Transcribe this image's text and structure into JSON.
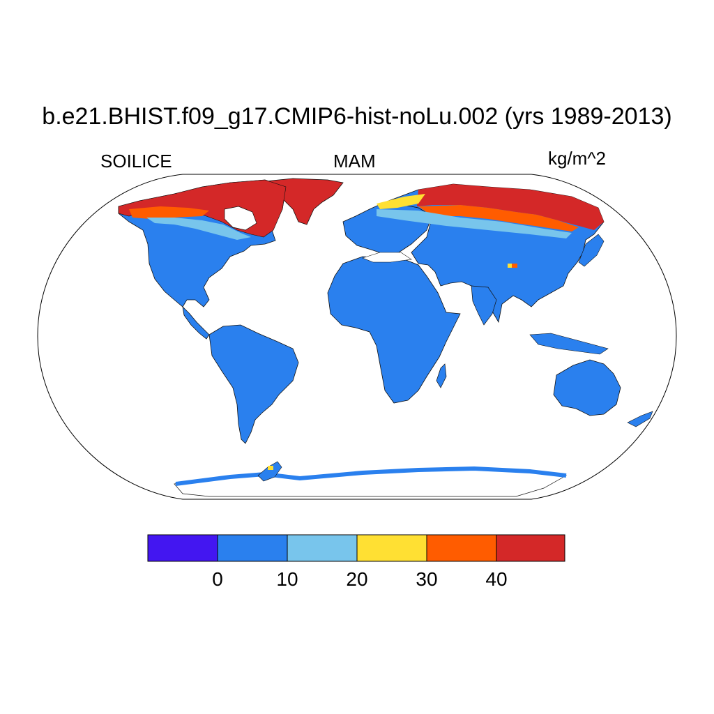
{
  "title": "b.e21.BHIST.f09_g17.CMIP6-hist-noLu.002 (yrs 1989-2013)",
  "left_subtitle": "SOILICE",
  "center_subtitle": "MAM",
  "right_subtitle": "kg/m^2",
  "map": {
    "projection": "Robinson",
    "variable": "SOILICE",
    "units": "kg/m^2",
    "season": "MAM"
  },
  "colorbar": {
    "colors": [
      "#4316F1",
      "#2A80EE",
      "#78C5EC",
      "#FFE033",
      "#FF5C00",
      "#D42828"
    ],
    "tick_labels": [
      "0",
      "10",
      "20",
      "30",
      "40"
    ]
  }
}
